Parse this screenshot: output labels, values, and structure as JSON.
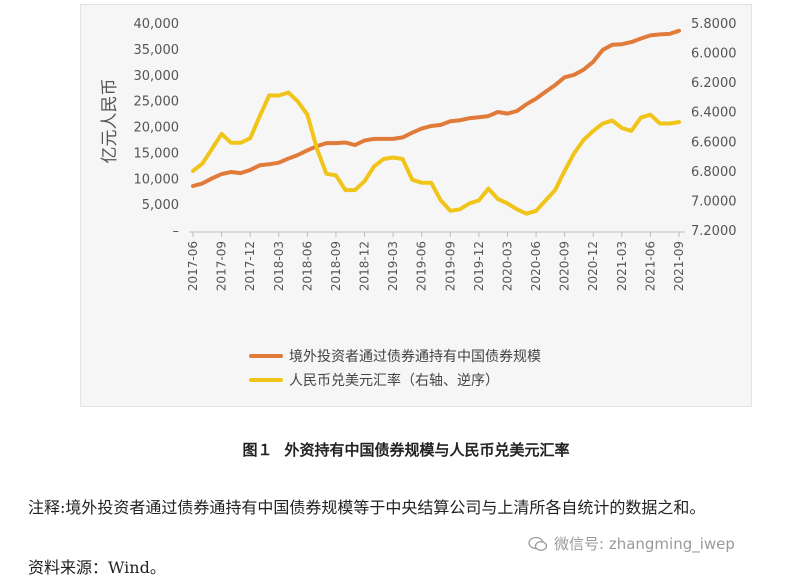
{
  "chart_data": {
    "type": "line",
    "y_left": {
      "label": "亿元人民币",
      "ticks": [
        "40,000",
        "35,000",
        "30,000",
        "25,000",
        "20,000",
        "15,000",
        "10,000",
        "5,000",
        "–"
      ],
      "range": [
        0,
        40000
      ]
    },
    "y_right": {
      "ticks": [
        "5.8000",
        "6.0000",
        "6.2000",
        "6.4000",
        "6.6000",
        "6.8000",
        "7.0000",
        "7.2000"
      ],
      "range": [
        5.8,
        7.2
      ],
      "reversed": true
    },
    "x_labels": [
      "2017-06",
      "2017-09",
      "2017-12",
      "2018-03",
      "2018-06",
      "2018-09",
      "2018-12",
      "2019-03",
      "2019-06",
      "2019-09",
      "2019-12",
      "2020-03",
      "2020-06",
      "2020-09",
      "2020-12",
      "2021-03",
      "2021-06",
      "2021-09"
    ],
    "x_months": [
      "2017-06",
      "2017-07",
      "2017-08",
      "2017-09",
      "2017-10",
      "2017-11",
      "2017-12",
      "2018-01",
      "2018-02",
      "2018-03",
      "2018-04",
      "2018-05",
      "2018-06",
      "2018-07",
      "2018-08",
      "2018-09",
      "2018-10",
      "2018-11",
      "2018-12",
      "2019-01",
      "2019-02",
      "2019-03",
      "2019-04",
      "2019-05",
      "2019-06",
      "2019-07",
      "2019-08",
      "2019-09",
      "2019-10",
      "2019-11",
      "2019-12",
      "2020-01",
      "2020-02",
      "2020-03",
      "2020-04",
      "2020-05",
      "2020-06",
      "2020-07",
      "2020-08",
      "2020-09",
      "2020-10",
      "2020-11",
      "2020-12",
      "2021-01",
      "2021-02",
      "2021-03",
      "2021-04",
      "2021-05",
      "2021-06",
      "2021-07",
      "2021-08",
      "2021-09"
    ],
    "series": [
      {
        "name": "境外投资者通过债券通持有中国债券规模",
        "axis": "left",
        "color": "#e07b39",
        "values": [
          8500,
          9000,
          10000,
          10800,
          11200,
          11000,
          11600,
          12500,
          12700,
          13000,
          13800,
          14500,
          15400,
          16200,
          16800,
          16800,
          16900,
          16400,
          17300,
          17600,
          17600,
          17600,
          17900,
          18800,
          19600,
          20100,
          20300,
          21000,
          21200,
          21600,
          21800,
          22000,
          22800,
          22500,
          23000,
          24300,
          25400,
          26700,
          28000,
          29500,
          30000,
          31000,
          32500,
          34800,
          35800,
          35900,
          36300,
          37000,
          37600,
          37800,
          37900,
          38500
        ]
      },
      {
        "name": "人民币兑美元汇率（右轴、逆序）",
        "axis": "right",
        "color": "#f0c419",
        "values": [
          6.8,
          6.75,
          6.65,
          6.55,
          6.61,
          6.61,
          6.58,
          6.43,
          6.29,
          6.29,
          6.27,
          6.33,
          6.42,
          6.65,
          6.82,
          6.83,
          6.93,
          6.93,
          6.87,
          6.77,
          6.72,
          6.71,
          6.72,
          6.86,
          6.88,
          6.88,
          7.0,
          7.07,
          7.06,
          7.02,
          7.0,
          6.92,
          6.99,
          7.02,
          7.06,
          7.09,
          7.07,
          7.0,
          6.93,
          6.8,
          6.68,
          6.59,
          6.53,
          6.48,
          6.46,
          6.51,
          6.53,
          6.44,
          6.42,
          6.48,
          6.48,
          6.47
        ]
      }
    ],
    "legend_position": "bottom",
    "grid": false
  },
  "caption": {
    "fig_no": "图１",
    "title": "外资持有中国债券规模与人民币兑美元汇率"
  },
  "note": "注释:境外投资者通过债券通持有中国债券规模等于中央结算公司与上清所各自统计的数据之和。",
  "source": "资料来源：Wind。",
  "watermark": "微信号: zhangming_iwep"
}
